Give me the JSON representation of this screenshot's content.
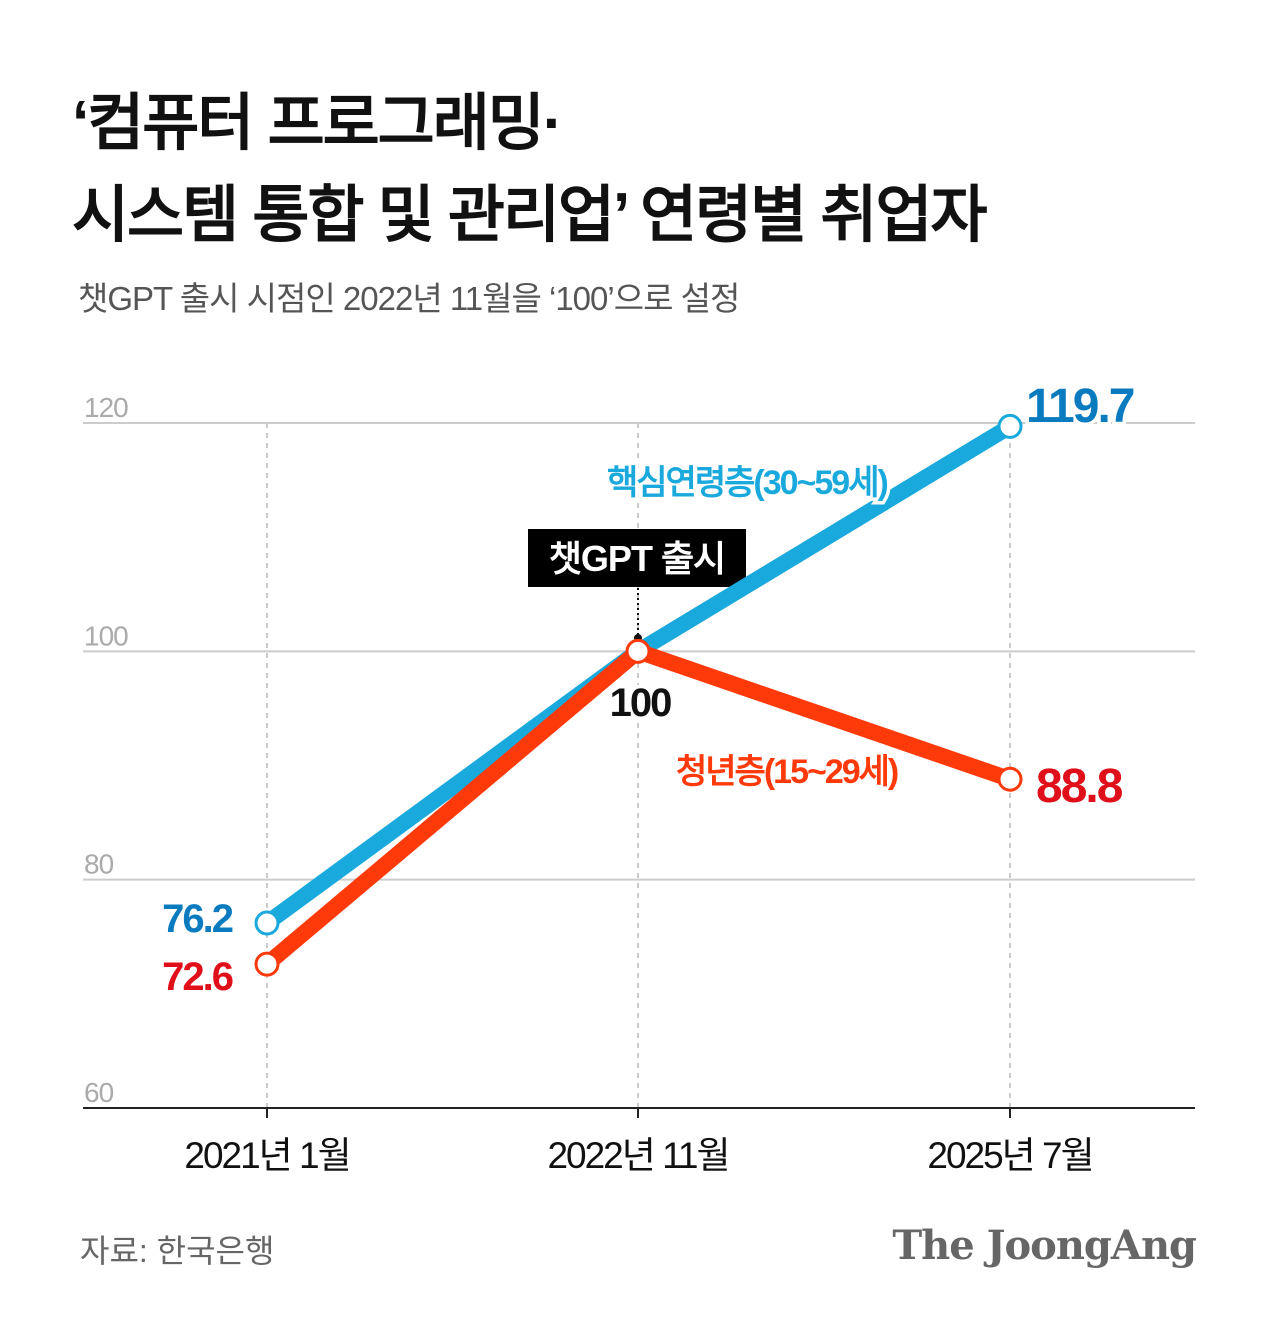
{
  "title_line1": "‘컴퓨터 프로그래밍·",
  "title_line2": "시스템 통합 및 관리업’ 연령별 취업자",
  "subtitle": "챗GPT 출시 시점인 2022년 11월을 ‘100’으로 설정",
  "source": "자료: 한국은행",
  "logo": "The JoongAng",
  "chart_data": {
    "type": "line",
    "categories": [
      "2021년 1월",
      "2022년 11월",
      "2025년 7월"
    ],
    "ylim": [
      60,
      120
    ],
    "yticks": [
      60,
      80,
      100,
      120
    ],
    "grid": true,
    "series": [
      {
        "name": "핵심연령층(30~59세)",
        "values": [
          76.2,
          100,
          119.7
        ],
        "color": "#1aa9dc",
        "label_color": "#0a7bbf"
      },
      {
        "name": "청년층(15~29세)",
        "values": [
          72.6,
          100,
          88.8
        ],
        "color": "#ff3a0a",
        "label_color": "#e0101a"
      }
    ],
    "annotation": {
      "label": "챗GPT 출시",
      "category": "2022년 11월",
      "value_label": "100"
    }
  }
}
